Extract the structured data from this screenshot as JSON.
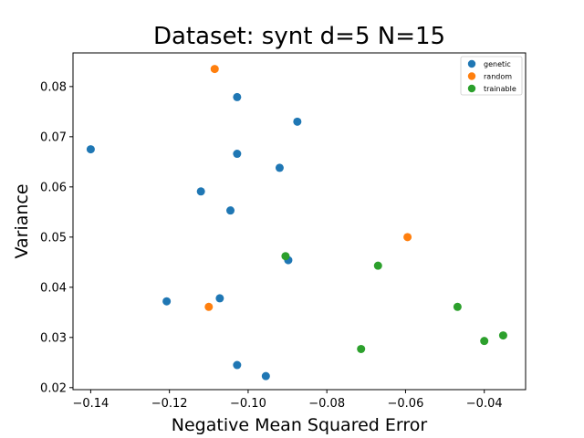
{
  "chart_data": {
    "type": "scatter",
    "title": "Dataset: synt d=5 N=15",
    "xlabel": "Negative Mean Squared Error",
    "ylabel": "Variance",
    "xlim": [
      -0.1445,
      -0.0295
    ],
    "ylim": [
      0.0196,
      0.0867
    ],
    "xticks": [
      -0.14,
      -0.12,
      -0.1,
      -0.08,
      -0.06,
      -0.04
    ],
    "xtick_labels": [
      "−0.14",
      "−0.12",
      "−0.10",
      "−0.08",
      "−0.06",
      "−0.04"
    ],
    "yticks": [
      0.02,
      0.03,
      0.04,
      0.05,
      0.06,
      0.07,
      0.08
    ],
    "ytick_labels": [
      "0.02",
      "0.03",
      "0.04",
      "0.05",
      "0.06",
      "0.07",
      "0.08"
    ],
    "grid": false,
    "legend_position": "top-right",
    "series": [
      {
        "name": "genetic",
        "color": "#1f77b4",
        "points": [
          [
            -0.14,
            0.0675
          ],
          [
            -0.1207,
            0.0372
          ],
          [
            -0.112,
            0.0591
          ],
          [
            -0.1072,
            0.0378
          ],
          [
            -0.1045,
            0.0553
          ],
          [
            -0.1028,
            0.0779
          ],
          [
            -0.1028,
            0.0666
          ],
          [
            -0.1028,
            0.0245
          ],
          [
            -0.0955,
            0.0223
          ],
          [
            -0.092,
            0.0638
          ],
          [
            -0.0898,
            0.0454
          ],
          [
            -0.0875,
            0.073
          ]
        ]
      },
      {
        "name": "random",
        "color": "#ff7f0e",
        "points": [
          [
            -0.1085,
            0.0835
          ],
          [
            -0.11,
            0.0361
          ],
          [
            -0.0595,
            0.05
          ]
        ]
      },
      {
        "name": "trainable",
        "color": "#2ca02c",
        "points": [
          [
            -0.0905,
            0.0462
          ],
          [
            -0.0713,
            0.0277
          ],
          [
            -0.067,
            0.0443
          ],
          [
            -0.0468,
            0.0361
          ],
          [
            -0.04,
            0.0293
          ],
          [
            -0.0352,
            0.0304
          ]
        ]
      }
    ]
  }
}
